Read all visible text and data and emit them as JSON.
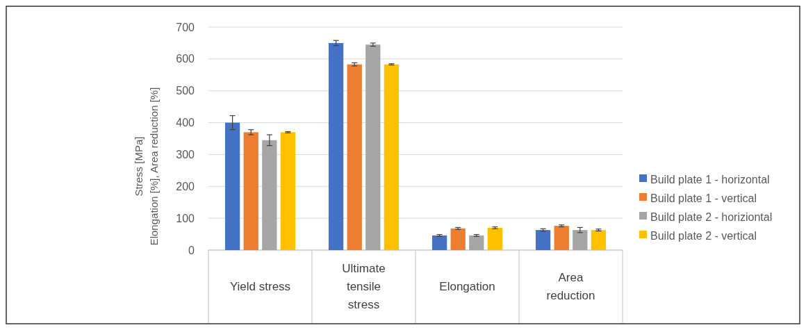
{
  "chart_data": {
    "type": "bar",
    "ylabel": "Stress [MPa]\nElongation  [%], Area reduction [%]",
    "categories": [
      "Yield stress",
      "Ultimate tensile stress",
      "Elongation",
      "Area reduction"
    ],
    "series": [
      {
        "name": "Build plate 1 - horizontal",
        "color": "#4472c4",
        "values": [
          400,
          650,
          46,
          63
        ],
        "errors": [
          22,
          8,
          3,
          4
        ]
      },
      {
        "name": "Build plate 1 - vertical",
        "color": "#ed7d31",
        "values": [
          370,
          583,
          68,
          76
        ],
        "errors": [
          8,
          5,
          3,
          3
        ]
      },
      {
        "name": "Build plate 2 - horiziontal",
        "color": "#a5a5a5",
        "values": [
          345,
          645,
          46,
          63
        ],
        "errors": [
          17,
          5,
          3,
          8
        ]
      },
      {
        "name": "Build plate 2 - vertical",
        "color": "#ffc000",
        "values": [
          370,
          583,
          70,
          63
        ],
        "errors": [
          2,
          2,
          3,
          3
        ]
      }
    ],
    "ylim": [
      0,
      700
    ],
    "yticks": [
      0,
      100,
      200,
      300,
      400,
      500,
      600,
      700
    ],
    "grid": "y",
    "legend": "right"
  }
}
